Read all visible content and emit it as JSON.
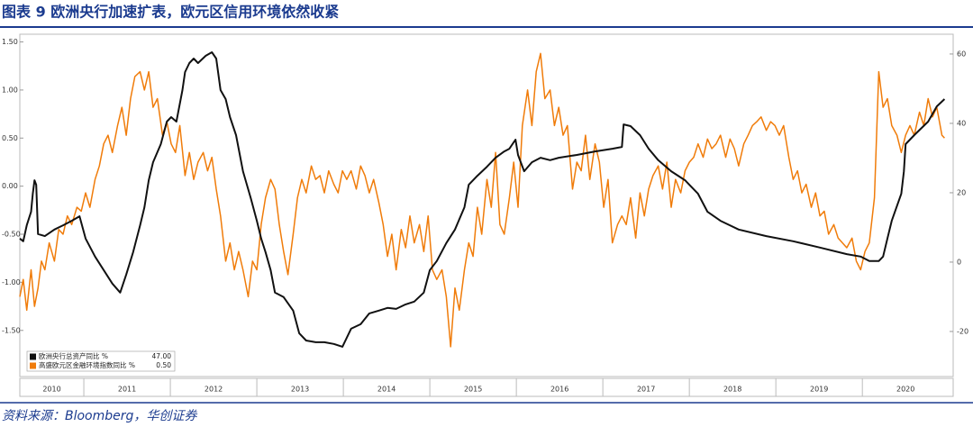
{
  "chart_data": {
    "type": "line",
    "title": "图表 9 欧洲央行加速扩表，欧元区信用环境依然收紧",
    "source": "资料来源：Bloomberg，华创证券",
    "xlim": [
      2010.26,
      2021.05
    ],
    "xticks": [
      2010,
      2011,
      2012,
      2013,
      2014,
      2015,
      2016,
      2017,
      2018,
      2019,
      2020
    ],
    "ylim": [
      -1.98,
      1.58
    ],
    "yticks": [
      {
        "value": 1.5,
        "label": "1.50"
      },
      {
        "value": 1,
        "label": "1.00"
      },
      {
        "value": 0.5,
        "label": "0.50"
      },
      {
        "value": 0,
        "label": "0.00"
      },
      {
        "value": -0.5,
        "label": "-0.50"
      },
      {
        "value": -1,
        "label": "-1.00"
      },
      {
        "value": -1.5,
        "label": "-1.50"
      }
    ],
    "y2lim": [
      -33,
      65.7
    ],
    "y2ticks": [
      60,
      40,
      20,
      0,
      -20
    ],
    "grid": false,
    "legend": "lower-left",
    "series": [
      {
        "name": "欧洲央行总资产同比 %",
        "last_label": "47.00",
        "color": "#111111",
        "axis": "y2",
        "x": [
          2010.26,
          2010.3,
          2010.34,
          2010.39,
          2010.41,
          2010.43,
          2010.45,
          2010.47,
          2010.55,
          2010.66,
          2010.76,
          2010.86,
          2010.95,
          2011.02,
          2011.13,
          2011.23,
          2011.33,
          2011.42,
          2011.49,
          2011.57,
          2011.65,
          2011.7,
          2011.75,
          2011.8,
          2011.89,
          2011.96,
          2012.01,
          2012.07,
          2012.14,
          2012.17,
          2012.22,
          2012.27,
          2012.32,
          2012.41,
          2012.48,
          2012.53,
          2012.58,
          2012.64,
          2012.69,
          2012.76,
          2012.84,
          2012.93,
          2013.0,
          2013.05,
          2013.1,
          2013.16,
          2013.21,
          2013.31,
          2013.42,
          2013.49,
          2013.57,
          2013.68,
          2013.78,
          2013.89,
          2013.99,
          2014.09,
          2014.2,
          2014.3,
          2014.41,
          2014.51,
          2014.61,
          2014.72,
          2014.82,
          2014.93,
          2015.0,
          2015.08,
          2015.19,
          2015.29,
          2015.4,
          2015.45,
          2015.55,
          2015.66,
          2015.76,
          2015.86,
          2015.92,
          2015.99,
          2016.02,
          2016.09,
          2016.18,
          2016.28,
          2016.39,
          2016.49,
          2016.7,
          2016.91,
          2017.11,
          2017.22,
          2017.24,
          2017.32,
          2017.43,
          2017.53,
          2017.64,
          2017.79,
          2017.95,
          2018.1,
          2018.21,
          2018.36,
          2018.57,
          2018.89,
          2019.2,
          2019.51,
          2019.82,
          2019.98,
          2020.08,
          2020.19,
          2020.24,
          2020.29,
          2020.34,
          2020.45,
          2020.48,
          2020.5,
          2020.6,
          2020.76,
          2020.86,
          2020.95
        ],
        "values": [
          6.8,
          6.0,
          10.6,
          14.5,
          19.7,
          23.6,
          22.3,
          8.1,
          7.5,
          9.4,
          10.6,
          11.9,
          13.2,
          6.8,
          1.6,
          -2.3,
          -6.2,
          -8.8,
          -3.6,
          2.9,
          10.6,
          15.8,
          23.6,
          28.8,
          34.0,
          40.5,
          41.8,
          40.5,
          49.6,
          54.8,
          57.4,
          58.7,
          57.4,
          59.5,
          60.5,
          58.7,
          49.6,
          47.0,
          41.8,
          36.6,
          26.2,
          18.4,
          11.9,
          6.8,
          2.9,
          -2.3,
          -8.8,
          -10.1,
          -14.0,
          -20.5,
          -22.6,
          -23.1,
          -23.1,
          -23.6,
          -24.4,
          -19.2,
          -17.9,
          -14.8,
          -14.0,
          -13.2,
          -13.5,
          -12.2,
          -11.4,
          -8.8,
          -2.3,
          0.3,
          5.5,
          9.4,
          15.8,
          22.3,
          24.9,
          27.5,
          30.1,
          31.9,
          32.7,
          35.3,
          30.9,
          26.2,
          28.8,
          30.1,
          29.4,
          30.1,
          30.9,
          31.9,
          32.7,
          33.2,
          39.7,
          39.2,
          36.6,
          32.7,
          29.4,
          26.2,
          23.6,
          19.7,
          14.5,
          11.9,
          9.4,
          7.5,
          6.0,
          4.2,
          2.3,
          1.6,
          0.3,
          0.3,
          1.6,
          6.8,
          11.9,
          19.7,
          26.2,
          34.0,
          36.6,
          40.5,
          44.9,
          47.0
        ]
      },
      {
        "name": "高盛欧元区金融环境指数同比 %",
        "last_label": "0.50",
        "color": "#f07c0a",
        "axis": "y",
        "x": [
          2010.26,
          2010.3,
          2010.34,
          2010.39,
          2010.43,
          2010.47,
          2010.51,
          2010.55,
          2010.6,
          2010.66,
          2010.71,
          2010.76,
          2010.81,
          2010.86,
          2010.92,
          2010.97,
          2011.02,
          2011.07,
          2011.13,
          2011.18,
          2011.23,
          2011.28,
          2011.33,
          2011.39,
          2011.44,
          2011.49,
          2011.54,
          2011.59,
          2011.65,
          2011.7,
          2011.75,
          2011.8,
          2011.85,
          2011.91,
          2011.96,
          2012.01,
          2012.06,
          2012.11,
          2012.17,
          2012.22,
          2012.27,
          2012.32,
          2012.38,
          2012.43,
          2012.48,
          2012.53,
          2012.58,
          2012.64,
          2012.69,
          2012.74,
          2012.79,
          2012.84,
          2012.9,
          2012.95,
          2013.0,
          2013.05,
          2013.1,
          2013.16,
          2013.21,
          2013.26,
          2013.31,
          2013.36,
          2013.42,
          2013.47,
          2013.52,
          2013.57,
          2013.63,
          2013.68,
          2013.73,
          2013.78,
          2013.83,
          2013.89,
          2013.94,
          2013.99,
          2014.04,
          2014.09,
          2014.15,
          2014.2,
          2014.25,
          2014.3,
          2014.35,
          2014.41,
          2014.46,
          2014.51,
          2014.56,
          2014.61,
          2014.67,
          2014.72,
          2014.77,
          2014.82,
          2014.88,
          2014.93,
          2014.98,
          2015.03,
          2015.08,
          2015.14,
          2015.19,
          2015.24,
          2015.29,
          2015.34,
          2015.4,
          2015.45,
          2015.5,
          2015.55,
          2015.6,
          2015.66,
          2015.71,
          2015.76,
          2015.81,
          2015.86,
          2015.92,
          2015.97,
          2016.02,
          2016.07,
          2016.13,
          2016.18,
          2016.23,
          2016.28,
          2016.33,
          2016.39,
          2016.44,
          2016.49,
          2016.54,
          2016.59,
          2016.65,
          2016.7,
          2016.75,
          2016.8,
          2016.85,
          2016.91,
          2016.96,
          2017.01,
          2017.06,
          2017.11,
          2017.17,
          2017.22,
          2017.27,
          2017.32,
          2017.38,
          2017.43,
          2017.48,
          2017.53,
          2017.58,
          2017.64,
          2017.69,
          2017.74,
          2017.79,
          2017.84,
          2017.9,
          2017.95,
          2018.0,
          2018.05,
          2018.1,
          2018.16,
          2018.21,
          2018.26,
          2018.31,
          2018.36,
          2018.42,
          2018.47,
          2018.52,
          2018.57,
          2018.63,
          2018.68,
          2018.73,
          2018.78,
          2018.83,
          2018.89,
          2018.94,
          2018.99,
          2019.04,
          2019.09,
          2019.15,
          2019.2,
          2019.25,
          2019.3,
          2019.35,
          2019.41,
          2019.46,
          2019.51,
          2019.56,
          2019.61,
          2019.67,
          2019.72,
          2019.77,
          2019.82,
          2019.88,
          2019.93,
          2019.98,
          2020.03,
          2020.08,
          2020.14,
          2020.19,
          2020.24,
          2020.29,
          2020.34,
          2020.4,
          2020.45,
          2020.5,
          2020.55,
          2020.6,
          2020.66,
          2020.71,
          2020.76,
          2020.81,
          2020.86,
          2020.92,
          2020.95
        ],
        "values": [
          -1.15,
          -0.97,
          -1.29,
          -0.87,
          -1.25,
          -1.06,
          -0.78,
          -0.87,
          -0.59,
          -0.78,
          -0.45,
          -0.5,
          -0.31,
          -0.4,
          -0.22,
          -0.26,
          -0.07,
          -0.22,
          0.07,
          0.21,
          0.44,
          0.53,
          0.35,
          0.63,
          0.82,
          0.53,
          0.91,
          1.14,
          1.19,
          1.0,
          1.19,
          0.82,
          0.91,
          0.53,
          0.67,
          0.44,
          0.35,
          0.63,
          0.11,
          0.35,
          0.07,
          0.25,
          0.35,
          0.16,
          0.3,
          -0.03,
          -0.31,
          -0.78,
          -0.59,
          -0.87,
          -0.68,
          -0.87,
          -1.15,
          -0.78,
          -0.87,
          -0.4,
          -0.12,
          0.07,
          -0.03,
          -0.4,
          -0.68,
          -0.92,
          -0.5,
          -0.12,
          0.07,
          -0.07,
          0.21,
          0.07,
          0.11,
          -0.07,
          0.16,
          0.02,
          -0.07,
          0.16,
          0.07,
          0.16,
          -0.03,
          0.21,
          0.11,
          -0.07,
          0.07,
          -0.17,
          -0.4,
          -0.73,
          -0.5,
          -0.87,
          -0.45,
          -0.64,
          -0.31,
          -0.59,
          -0.4,
          -0.68,
          -0.31,
          -0.87,
          -0.97,
          -0.87,
          -1.15,
          -1.67,
          -1.06,
          -1.29,
          -0.87,
          -0.59,
          -0.73,
          -0.22,
          -0.5,
          0.07,
          -0.22,
          0.35,
          -0.4,
          -0.5,
          -0.12,
          0.25,
          -0.22,
          0.63,
          1.0,
          0.63,
          1.19,
          1.38,
          0.91,
          1.0,
          0.63,
          0.82,
          0.53,
          0.63,
          -0.03,
          0.25,
          0.16,
          0.53,
          0.07,
          0.44,
          0.25,
          -0.22,
          0.07,
          -0.59,
          -0.4,
          -0.31,
          -0.4,
          -0.12,
          -0.54,
          -0.07,
          -0.31,
          -0.03,
          0.11,
          0.21,
          -0.03,
          0.25,
          -0.22,
          0.07,
          -0.07,
          0.16,
          0.25,
          0.3,
          0.44,
          0.3,
          0.49,
          0.39,
          0.44,
          0.53,
          0.3,
          0.49,
          0.39,
          0.21,
          0.44,
          0.53,
          0.63,
          0.67,
          0.72,
          0.58,
          0.67,
          0.63,
          0.53,
          0.63,
          0.3,
          0.07,
          0.16,
          -0.07,
          0.02,
          -0.22,
          -0.07,
          -0.31,
          -0.26,
          -0.5,
          -0.4,
          -0.54,
          -0.59,
          -0.64,
          -0.54,
          -0.78,
          -0.87,
          -0.68,
          -0.59,
          -0.12,
          1.19,
          0.82,
          0.91,
          0.63,
          0.53,
          0.35,
          0.53,
          0.63,
          0.53,
          0.77,
          0.63,
          0.91,
          0.72,
          0.82,
          0.53,
          0.5
        ]
      }
    ]
  }
}
